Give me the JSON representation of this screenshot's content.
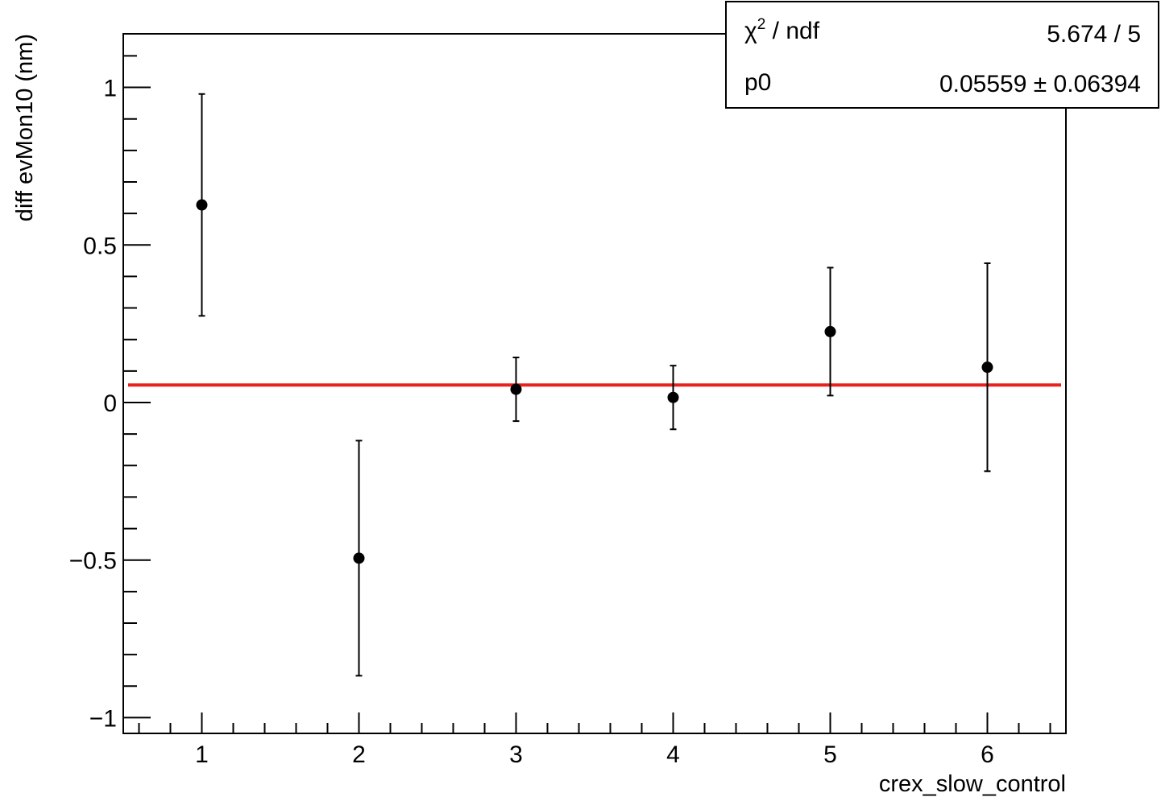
{
  "chart_data": {
    "type": "scatter",
    "title": "",
    "xlabel": "crex_slow_control",
    "ylabel": "diff evMon10 (nm)",
    "xlim": [
      0.5,
      6.5
    ],
    "ylim": [
      -1.05,
      1.17
    ],
    "x_ticks": [
      1,
      2,
      3,
      4,
      5,
      6
    ],
    "x_tick_labels": [
      "1",
      "2",
      "3",
      "4",
      "5",
      "6"
    ],
    "y_ticks": [
      -1,
      -0.5,
      0,
      0.5,
      1
    ],
    "y_tick_labels": [
      "−1",
      "−0.5",
      "0",
      "0.5",
      "1"
    ],
    "grid": false,
    "points": [
      {
        "x": 1,
        "y": 0.627,
        "err": 0.352
      },
      {
        "x": 2,
        "y": -0.494,
        "err": 0.373
      },
      {
        "x": 3,
        "y": 0.042,
        "err": 0.101
      },
      {
        "x": 4,
        "y": 0.016,
        "err": 0.101
      },
      {
        "x": 5,
        "y": 0.225,
        "err": 0.203
      },
      {
        "x": 6,
        "y": 0.112,
        "err": 0.33
      }
    ],
    "fit": {
      "type": "constant",
      "value": 0.05559,
      "x_range": [
        0.5,
        6.5
      ],
      "color": "#e8211e"
    },
    "stats_box": {
      "placement": "top-right",
      "rows": [
        {
          "label_greek": "χ",
          "label_sup": "2",
          "label_rest": " / ndf",
          "value": "5.674 / 5"
        },
        {
          "label_greek": "",
          "label_sup": "",
          "label_rest": "p0",
          "value": "0.05559 ± 0.06394"
        }
      ]
    },
    "colors": {
      "points": "#000000",
      "axes": "#000000",
      "fit_line": "#e8211e"
    }
  }
}
